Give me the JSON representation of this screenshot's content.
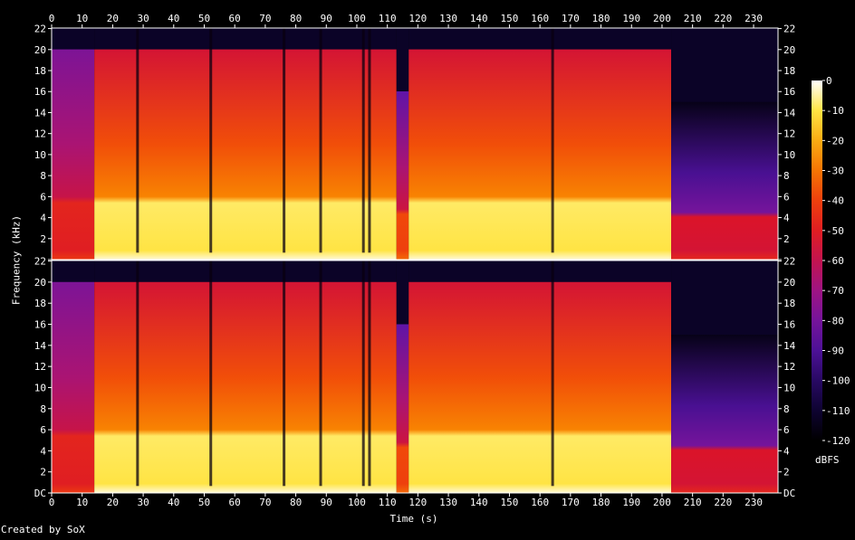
{
  "chart_data": {
    "type": "heatmap",
    "xlabel": "Time (s)",
    "ylabel": "Frequency (kHz)",
    "x_ticks": [
      0,
      10,
      20,
      30,
      40,
      50,
      60,
      70,
      80,
      90,
      100,
      110,
      120,
      130,
      140,
      150,
      160,
      170,
      180,
      190,
      200,
      210,
      220,
      230
    ],
    "x_tick_labels": [
      "0",
      "10",
      "20",
      "30",
      "40",
      "50",
      "60",
      "70",
      "80",
      "90",
      "100",
      "110",
      "120",
      "130",
      "140",
      "150",
      "160",
      "170",
      "180",
      "190",
      "200",
      "210",
      "220",
      "230"
    ],
    "xlim": [
      0,
      238
    ],
    "y_ticks": [
      0,
      2,
      4,
      6,
      8,
      10,
      12,
      14,
      16,
      18,
      20,
      22
    ],
    "y_tick_labels": [
      "DC",
      "2",
      "4",
      "6",
      "8",
      "10",
      "12",
      "14",
      "16",
      "18",
      "20",
      "22"
    ],
    "ylim": [
      0,
      22.05
    ],
    "channels": 2,
    "colorbar": {
      "unit": "dBFS",
      "ticks": [
        0,
        -10,
        -20,
        -30,
        -40,
        -50,
        -60,
        -70,
        -80,
        -90,
        -100,
        -110,
        -120
      ],
      "range": [
        -120,
        0
      ]
    },
    "segments": [
      {
        "start": 0,
        "end": 14,
        "level_low": -50,
        "level_high": -78,
        "cutoff_khz": 20
      },
      {
        "start": 14,
        "end": 113,
        "level_low": -10,
        "level_high": -55,
        "cutoff_khz": 20
      },
      {
        "start": 113,
        "end": 117,
        "level_low": -40,
        "level_high": -85,
        "cutoff_khz": 16
      },
      {
        "start": 117,
        "end": 203,
        "level_low": -10,
        "level_high": -55,
        "cutoff_khz": 20
      },
      {
        "start": 203,
        "end": 238,
        "level_low": -55,
        "level_high": -115,
        "cutoff_khz": 15
      }
    ],
    "dips_s": [
      28,
      52,
      76,
      88,
      102,
      104,
      164
    ]
  },
  "credit": "Created by SoX",
  "colors": {
    "background": "#000000",
    "text": "#ffffff",
    "frame": "#ffffff"
  }
}
